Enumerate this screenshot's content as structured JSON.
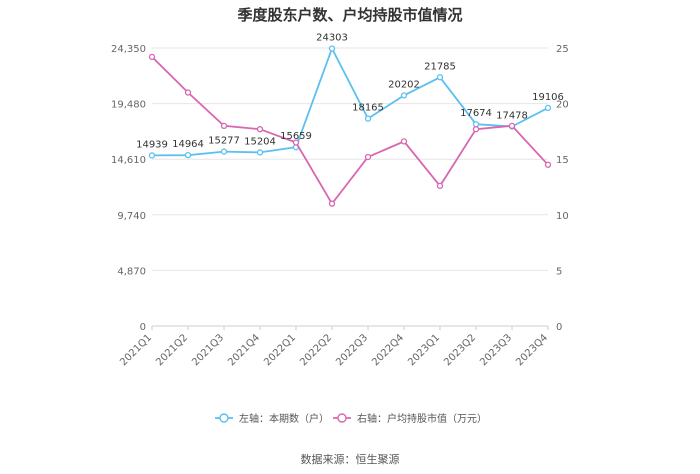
{
  "chart_data": {
    "type": "line",
    "title": "季度股东户数、户均持股市值情况",
    "categories": [
      "2021Q1",
      "2021Q2",
      "2021Q3",
      "2021Q4",
      "2022Q1",
      "2022Q2",
      "2022Q3",
      "2022Q4",
      "2023Q1",
      "2023Q2",
      "2023Q3",
      "2023Q4"
    ],
    "left_axis": {
      "ticks": [
        "0",
        "4,870",
        "9,740",
        "14,610",
        "19,480",
        "24,350"
      ],
      "ylim": [
        0,
        24350
      ]
    },
    "right_axis": {
      "ticks": [
        "0",
        "5",
        "10",
        "15",
        "20",
        "25"
      ],
      "ylim": [
        0,
        25
      ]
    },
    "series": [
      {
        "name": "左轴：本期数（户）",
        "axis": "left",
        "color": "#5bc0f0",
        "values": [
          14939,
          14964,
          15277,
          15204,
          15659,
          24303,
          18165,
          20202,
          21785,
          17674,
          17478,
          19106
        ],
        "labels": [
          "14939",
          "14964",
          "15277",
          "15204",
          "15659",
          "24303",
          "18165",
          "20202",
          "21785",
          "17674",
          "17478",
          "19106"
        ]
      },
      {
        "name": "右轴：户均持股市值（万元）",
        "axis": "right",
        "color": "#d966b0",
        "values": [
          24.2,
          21.0,
          18.0,
          17.7,
          16.5,
          11.0,
          15.2,
          16.6,
          12.6,
          17.7,
          18.0,
          14.5
        ]
      }
    ],
    "grid": true,
    "legend_position": "bottom"
  },
  "source_text": "数据来源：恒生聚源"
}
